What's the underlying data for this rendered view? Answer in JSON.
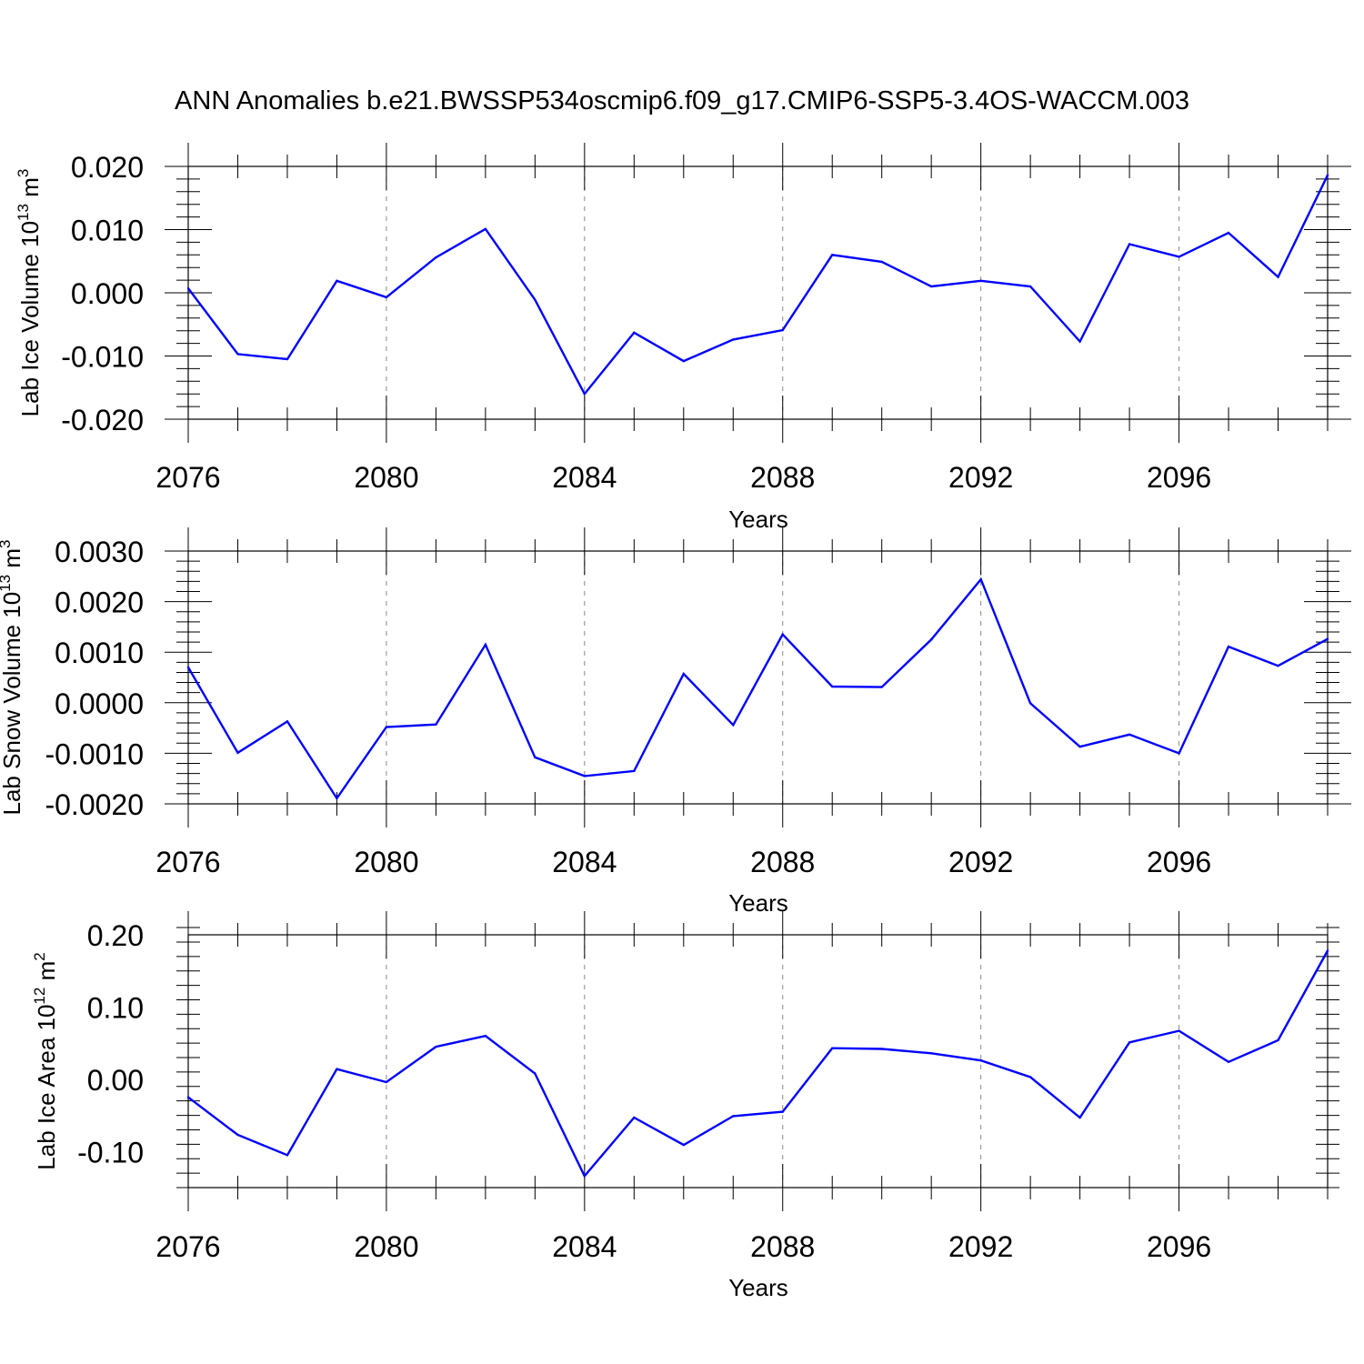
{
  "title": "ANN Anomalies b.e21.BWSSP534oscmip6.f09_g17.CMIP6-SSP5-3.4OS-WACCM.003",
  "colors": {
    "line": "#0000ff",
    "axis": "#000000",
    "grid": "#888888"
  },
  "chart_data": [
    {
      "type": "line",
      "xlabel": "Years",
      "ylabel": {
        "text": "Lab Ice Volume 10",
        "exponent": "13",
        "unit": " m",
        "unit_exponent": "3"
      },
      "xlim": [
        2076,
        2099
      ],
      "ylim": [
        -0.02,
        0.02
      ],
      "xticks": [
        2076,
        2080,
        2084,
        2088,
        2092,
        2096
      ],
      "xtick_labels": [
        "2076",
        "2080",
        "2084",
        "2088",
        "2092",
        "2096"
      ],
      "yticks": [
        -0.02,
        -0.01,
        0.0,
        0.01,
        0.02
      ],
      "ytick_labels": [
        "-0.020",
        "-0.010",
        "0.000",
        "0.010",
        "0.020"
      ],
      "x": [
        2076,
        2077,
        2078,
        2079,
        2080,
        2081,
        2082,
        2083,
        2084,
        2085,
        2086,
        2087,
        2088,
        2089,
        2090,
        2091,
        2092,
        2093,
        2094,
        2095,
        2096,
        2097,
        2098,
        2099
      ],
      "values": [
        0.0007,
        -0.0097,
        -0.0105,
        0.0019,
        -0.0007,
        0.0056,
        0.0101,
        -0.0011,
        -0.016,
        -0.0063,
        -0.0108,
        -0.0074,
        -0.0059,
        0.006,
        0.0049,
        0.001,
        0.0019,
        0.001,
        -0.0077,
        0.0077,
        0.0057,
        0.0095,
        0.0025,
        0.0186
      ]
    },
    {
      "type": "line",
      "xlabel": "Years",
      "ylabel": {
        "text": "Lab Snow Volume 10",
        "exponent": "13",
        "unit": " m",
        "unit_exponent": "3"
      },
      "xlim": [
        2076,
        2099
      ],
      "ylim": [
        -0.002,
        0.003
      ],
      "xticks": [
        2076,
        2080,
        2084,
        2088,
        2092,
        2096
      ],
      "xtick_labels": [
        "2076",
        "2080",
        "2084",
        "2088",
        "2092",
        "2096"
      ],
      "yticks": [
        -0.002,
        -0.001,
        0.0,
        0.001,
        0.002,
        0.003
      ],
      "ytick_labels": [
        "-0.0020",
        "-0.0010",
        "0.0000",
        "0.0010",
        "0.0020",
        "0.0030"
      ],
      "x": [
        2076,
        2077,
        2078,
        2079,
        2080,
        2081,
        2082,
        2083,
        2084,
        2085,
        2086,
        2087,
        2088,
        2089,
        2090,
        2091,
        2092,
        2093,
        2094,
        2095,
        2096,
        2097,
        2098,
        2099
      ],
      "values": [
        0.0007,
        -0.00099,
        -0.00037,
        -0.00189,
        -0.00048,
        -0.00043,
        0.00115,
        -0.00108,
        -0.00145,
        -0.00135,
        0.00057,
        -0.00044,
        0.00135,
        0.00032,
        0.00031,
        0.00125,
        0.00244,
        -1e-05,
        -0.00087,
        -0.00063,
        -0.001,
        0.00111,
        0.00073,
        0.00126
      ]
    },
    {
      "type": "line",
      "xlabel": "Years",
      "ylabel": {
        "text": "Lab Ice Area 10",
        "exponent": "12",
        "unit": " m",
        "unit_exponent": "2"
      },
      "xlim": [
        2076,
        2099
      ],
      "ylim": [
        -0.15,
        0.2
      ],
      "xticks": [
        2076,
        2080,
        2084,
        2088,
        2092,
        2096
      ],
      "xtick_labels": [
        "2076",
        "2080",
        "2084",
        "2088",
        "2092",
        "2096"
      ],
      "yticks": [
        -0.1,
        0.0,
        0.1,
        0.2
      ],
      "ytick_labels": [
        "-0.10",
        "0.00",
        "0.10",
        "0.20"
      ],
      "x": [
        2076,
        2077,
        2078,
        2079,
        2080,
        2081,
        2082,
        2083,
        2084,
        2085,
        2086,
        2087,
        2088,
        2089,
        2090,
        2091,
        2092,
        2093,
        2094,
        2095,
        2096,
        2097,
        2098,
        2099
      ],
      "values": [
        -0.025,
        -0.077,
        -0.105,
        0.014,
        -0.004,
        0.045,
        0.06,
        0.008,
        -0.134,
        -0.053,
        -0.091,
        -0.051,
        -0.045,
        0.043,
        0.042,
        0.036,
        0.026,
        0.003,
        -0.053,
        0.051,
        0.067,
        0.024,
        0.054,
        0.178
      ]
    }
  ]
}
